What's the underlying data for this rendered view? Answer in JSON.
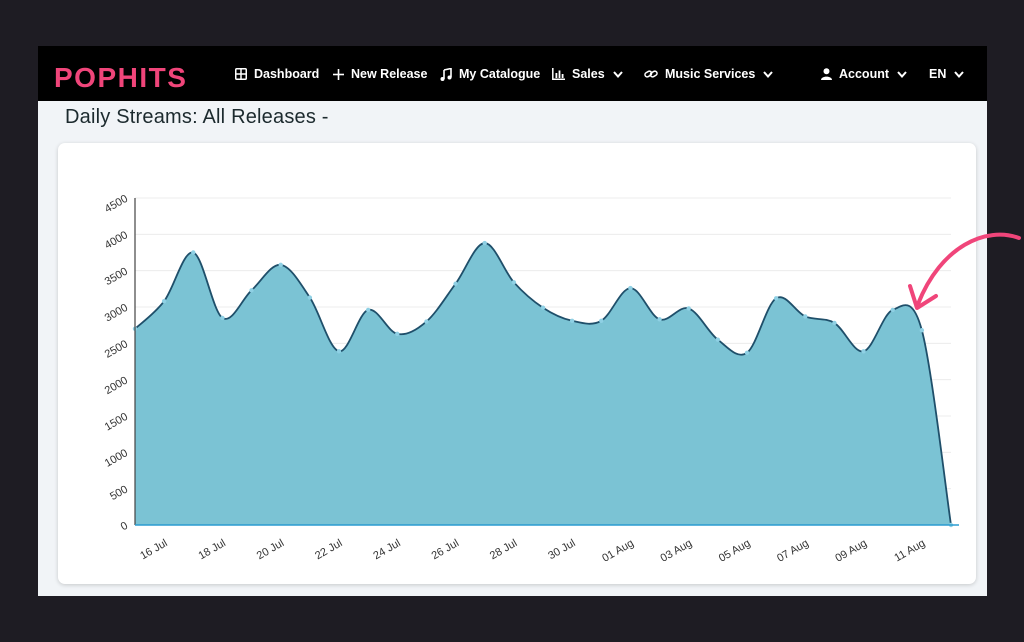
{
  "nav": {
    "logo": "POPHITS",
    "items": [
      {
        "label": "Dashboard",
        "icon": "grid-icon",
        "dropdown": false
      },
      {
        "label": "New Release",
        "icon": "plus-icon",
        "dropdown": false
      },
      {
        "label": "My Catalogue",
        "icon": "music-note-icon",
        "dropdown": false
      },
      {
        "label": "Sales",
        "icon": "bar-chart-icon",
        "dropdown": true
      },
      {
        "label": "Music Services",
        "icon": "link-icon",
        "dropdown": true
      },
      {
        "label": "Account",
        "icon": "user-icon",
        "dropdown": true
      },
      {
        "label": "EN",
        "icon": "",
        "dropdown": true
      }
    ]
  },
  "page": {
    "title": "Daily Streams: All Releases -"
  },
  "colors": {
    "logo": "#f0457a",
    "area_fill": "#7bc3d4",
    "line": "#1f4f6a",
    "annotation_arrow": "#f0457a"
  },
  "chart_data": {
    "type": "area",
    "title": "",
    "xlabel": "",
    "ylabel": "",
    "ylim": [
      0,
      4500
    ],
    "yticks": [
      0,
      500,
      1000,
      1500,
      2000,
      2500,
      3000,
      3500,
      4000,
      4500
    ],
    "xtick_labels": [
      "16 Jul",
      "18 Jul",
      "20 Jul",
      "22 Jul",
      "24 Jul",
      "26 Jul",
      "28 Jul",
      "30 Jul",
      "01 Aug",
      "03 Aug",
      "05 Aug",
      "07 Aug",
      "09 Aug",
      "11 Aug"
    ],
    "grid": true,
    "x": [
      "15 Jul",
      "16 Jul",
      "17 Jul",
      "18 Jul",
      "19 Jul",
      "20 Jul",
      "21 Jul",
      "22 Jul",
      "23 Jul",
      "24 Jul",
      "25 Jul",
      "26 Jul",
      "27 Jul",
      "28 Jul",
      "29 Jul",
      "30 Jul",
      "31 Jul",
      "01 Aug",
      "02 Aug",
      "03 Aug",
      "04 Aug",
      "05 Aug",
      "06 Aug",
      "07 Aug",
      "08 Aug",
      "09 Aug",
      "10 Aug",
      "11 Aug",
      "12 Aug"
    ],
    "series": [
      {
        "values": [
          2700,
          3080,
          3750,
          2850,
          3230,
          3580,
          3130,
          2390,
          2960,
          2630,
          2800,
          3320,
          3880,
          3340,
          2990,
          2810,
          2810,
          3260,
          2830,
          2980,
          2550,
          2370,
          3120,
          2870,
          2780,
          2390,
          2960,
          2680,
          0
        ]
      }
    ]
  }
}
